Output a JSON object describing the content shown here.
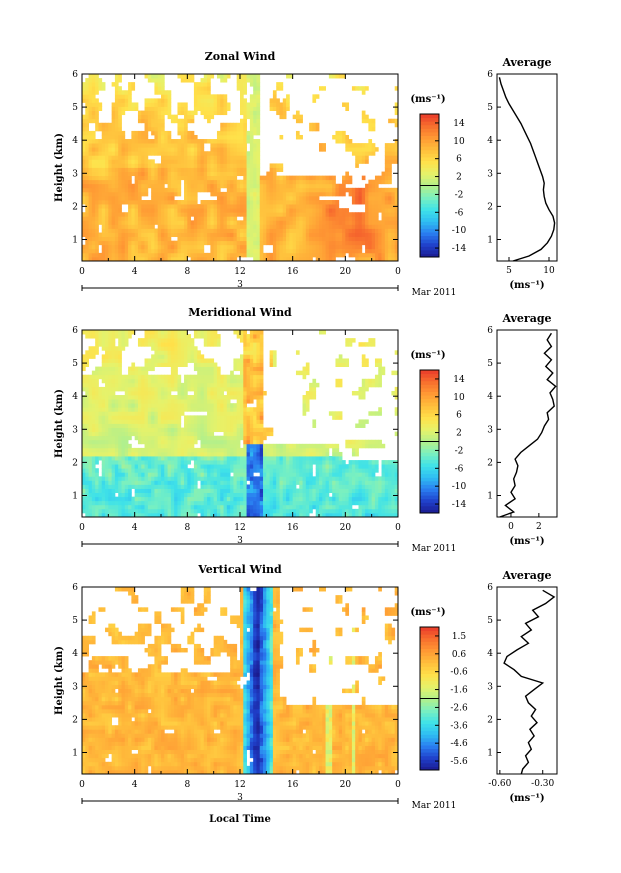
{
  "colors": {
    "ramp": [
      "#1b1b8f",
      "#1f3fc9",
      "#2a7df0",
      "#2fbef2",
      "#3fe2e8",
      "#7af0c0",
      "#b4f08a",
      "#e6f26a",
      "#ffe14a",
      "#ffbf3c",
      "#ff9a34",
      "#f8702e",
      "#ea3b2a"
    ],
    "line": "#000000"
  },
  "chart_data": [
    {
      "type": "heatmap",
      "id": "zonal",
      "title": "Zonal Wind",
      "xlabel": "",
      "ylabel": "Height (km)",
      "x_ticks": [
        "0",
        "4",
        "8",
        "12",
        "16",
        "20",
        "0"
      ],
      "y_ticks": [
        "1",
        "2",
        "3",
        "4",
        "5",
        "6"
      ],
      "xlim": [
        0,
        24
      ],
      "ylim": [
        0.35,
        6
      ],
      "date_label": "3",
      "month_label": "Mar 2011",
      "colorbar": {
        "unit": "(ms⁻¹)",
        "ticks": [
          "14",
          "10",
          "6",
          "2",
          "-2",
          "-6",
          "-10",
          "-14"
        ],
        "range": [
          -16,
          16
        ]
      },
      "profile": {
        "title": "Average",
        "x_ticks": [
          "5",
          "10"
        ],
        "xlim": [
          3.5,
          11
        ],
        "xunit": "(ms⁻¹)",
        "height": [
          0.35,
          0.5,
          0.7,
          0.9,
          1.1,
          1.3,
          1.5,
          1.7,
          1.9,
          2.1,
          2.3,
          2.5,
          2.7,
          2.9,
          3.1,
          3.3,
          3.5,
          3.7,
          3.9,
          4.1,
          4.3,
          4.5,
          4.7,
          4.9,
          5.1,
          5.3,
          5.5,
          5.7,
          5.9
        ],
        "value": [
          5.5,
          7.5,
          9.0,
          9.8,
          10.3,
          10.6,
          10.7,
          10.5,
          10.0,
          9.6,
          9.4,
          9.3,
          9.4,
          9.2,
          8.9,
          8.6,
          8.3,
          8.0,
          7.7,
          7.3,
          6.9,
          6.5,
          6.0,
          5.5,
          5.0,
          4.6,
          4.3,
          4.0,
          3.8
        ]
      }
    },
    {
      "type": "heatmap",
      "id": "meridional",
      "title": "Meridional Wind",
      "xlabel": "",
      "ylabel": "Height (km)",
      "x_ticks": [
        "0",
        "4",
        "8",
        "12",
        "16",
        "20",
        "0"
      ],
      "y_ticks": [
        "1",
        "2",
        "3",
        "4",
        "5",
        "6"
      ],
      "xlim": [
        0,
        24
      ],
      "ylim": [
        0.35,
        6
      ],
      "date_label": "3",
      "month_label": "Mar 2011",
      "colorbar": {
        "unit": "(ms⁻¹)",
        "ticks": [
          "14",
          "10",
          "6",
          "2",
          "-2",
          "-6",
          "-10",
          "-14"
        ],
        "range": [
          -16,
          16
        ]
      },
      "profile": {
        "title": "Average",
        "x_ticks": [
          "0",
          "2"
        ],
        "xlim": [
          -1,
          3.3
        ],
        "xunit": "(ms⁻¹)",
        "height": [
          0.35,
          0.5,
          0.7,
          0.9,
          1.1,
          1.3,
          1.5,
          1.7,
          1.9,
          2.1,
          2.3,
          2.5,
          2.7,
          2.9,
          3.1,
          3.3,
          3.5,
          3.7,
          3.9,
          4.1,
          4.3,
          4.5,
          4.7,
          4.9,
          5.1,
          5.3,
          5.5,
          5.7,
          5.9
        ],
        "value": [
          -0.8,
          0.2,
          -0.4,
          0.3,
          0.0,
          0.3,
          0.2,
          0.4,
          0.5,
          0.3,
          0.7,
          1.3,
          1.9,
          2.2,
          2.4,
          2.7,
          2.6,
          3.1,
          3.0,
          2.8,
          3.2,
          2.6,
          3.0,
          2.5,
          2.9,
          2.4,
          2.9,
          2.6,
          2.9
        ]
      }
    },
    {
      "type": "heatmap",
      "id": "vertical",
      "title": "Vertical Wind",
      "xlabel": "Local Time",
      "ylabel": "Height (km)",
      "x_ticks": [
        "0",
        "4",
        "8",
        "12",
        "16",
        "20",
        "0"
      ],
      "y_ticks": [
        "1",
        "2",
        "3",
        "4",
        "5",
        "6"
      ],
      "xlim": [
        0,
        24
      ],
      "ylim": [
        0.35,
        6
      ],
      "date_label": "3",
      "month_label": "Mar 2011",
      "colorbar": {
        "unit": "(ms⁻¹)",
        "ticks": [
          "1.5",
          "0.6",
          "-0.6",
          "-1.6",
          "-2.6",
          "-3.6",
          "-4.6",
          "-5.6"
        ],
        "range": [
          -6.0,
          2.0
        ]
      },
      "profile": {
        "title": "Average",
        "x_ticks": [
          "-0.60",
          "-0.30"
        ],
        "xlim": [
          -0.62,
          -0.2
        ],
        "xunit": "(ms⁻¹)",
        "height": [
          0.35,
          0.5,
          0.7,
          0.9,
          1.1,
          1.3,
          1.5,
          1.7,
          1.9,
          2.1,
          2.3,
          2.5,
          2.7,
          2.9,
          3.1,
          3.3,
          3.5,
          3.7,
          3.9,
          4.1,
          4.3,
          4.5,
          4.7,
          4.9,
          5.1,
          5.3,
          5.5,
          5.7,
          5.9
        ],
        "value": [
          -0.45,
          -0.44,
          -0.4,
          -0.42,
          -0.38,
          -0.4,
          -0.36,
          -0.39,
          -0.34,
          -0.38,
          -0.35,
          -0.4,
          -0.42,
          -0.36,
          -0.3,
          -0.45,
          -0.5,
          -0.57,
          -0.55,
          -0.48,
          -0.4,
          -0.45,
          -0.38,
          -0.42,
          -0.33,
          -0.37,
          -0.28,
          -0.22,
          -0.3
        ]
      }
    }
  ]
}
